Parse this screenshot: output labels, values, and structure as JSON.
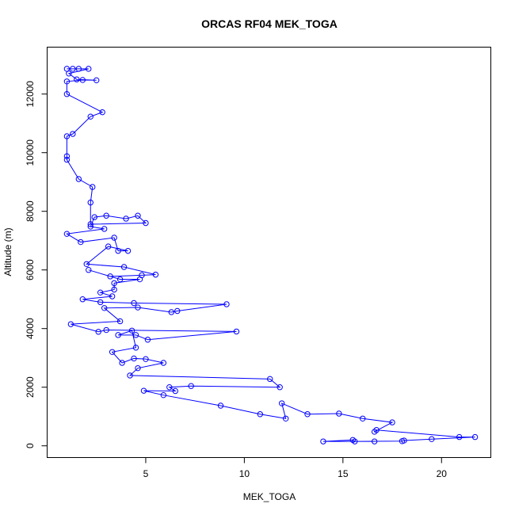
{
  "chart_data": {
    "type": "line",
    "title": "ORCAS RF04 MEK_TOGA",
    "xlabel": "MEK_TOGA",
    "ylabel": "Altitude (m)",
    "xlim": [
      0.0,
      22.5
    ],
    "ylim": [
      -400,
      13600
    ],
    "x_ticks": [
      5,
      10,
      15,
      20
    ],
    "y_ticks": [
      0,
      2000,
      4000,
      6000,
      8000,
      10000,
      12000
    ],
    "x_tick_labels": [
      "5",
      "10",
      "15",
      "20"
    ],
    "y_tick_labels": [
      "0",
      "2000",
      "4000",
      "6000",
      "8000",
      "10000",
      "12000"
    ],
    "grid": false,
    "series": [
      {
        "color": "#0000ff",
        "marker": "open-circle",
        "points": [
          [
            1.0,
            12860
          ],
          [
            1.3,
            12860
          ],
          [
            1.6,
            12860
          ],
          [
            2.1,
            12860
          ],
          [
            1.1,
            12700
          ],
          [
            1.5,
            12500
          ],
          [
            2.5,
            12470
          ],
          [
            1.8,
            12480
          ],
          [
            1.0,
            12430
          ],
          [
            1.0,
            12000
          ],
          [
            2.8,
            11380
          ],
          [
            2.2,
            11230
          ],
          [
            1.3,
            10640
          ],
          [
            1.0,
            10560
          ],
          [
            1.0,
            9880
          ],
          [
            1.0,
            9760
          ],
          [
            1.6,
            9100
          ],
          [
            2.3,
            8830
          ],
          [
            2.2,
            8300
          ],
          [
            2.2,
            7560
          ],
          [
            5.0,
            7600
          ],
          [
            4.6,
            7850
          ],
          [
            4.0,
            7750
          ],
          [
            3.0,
            7850
          ],
          [
            2.4,
            7800
          ],
          [
            2.2,
            7480
          ],
          [
            2.9,
            7400
          ],
          [
            1.0,
            7230
          ],
          [
            1.7,
            6950
          ],
          [
            3.4,
            7100
          ],
          [
            3.6,
            6650
          ],
          [
            4.1,
            6650
          ],
          [
            3.1,
            6800
          ],
          [
            2.0,
            6200
          ],
          [
            3.9,
            6100
          ],
          [
            5.5,
            5840
          ],
          [
            4.8,
            5820
          ],
          [
            3.2,
            5780
          ],
          [
            2.1,
            6000
          ],
          [
            3.7,
            5680
          ],
          [
            4.7,
            5680
          ],
          [
            3.4,
            5550
          ],
          [
            3.4,
            5330
          ],
          [
            2.7,
            5230
          ],
          [
            3.3,
            5100
          ],
          [
            1.8,
            5000
          ],
          [
            2.7,
            4900
          ],
          [
            4.4,
            4870
          ],
          [
            9.1,
            4830
          ],
          [
            6.6,
            4600
          ],
          [
            6.3,
            4560
          ],
          [
            4.6,
            4720
          ],
          [
            2.9,
            4700
          ],
          [
            3.7,
            4250
          ],
          [
            1.2,
            4150
          ],
          [
            2.6,
            3890
          ],
          [
            3.0,
            3950
          ],
          [
            9.6,
            3900
          ],
          [
            5.1,
            3620
          ],
          [
            4.5,
            3780
          ],
          [
            3.6,
            3780
          ],
          [
            4.3,
            3930
          ],
          [
            4.5,
            3350
          ],
          [
            3.3,
            3200
          ],
          [
            3.8,
            2830
          ],
          [
            4.4,
            2980
          ],
          [
            5.0,
            2960
          ],
          [
            5.9,
            2830
          ],
          [
            4.6,
            2650
          ],
          [
            4.2,
            2400
          ],
          [
            11.3,
            2280
          ],
          [
            11.8,
            2000
          ],
          [
            7.3,
            2040
          ],
          [
            6.2,
            2000
          ],
          [
            6.5,
            1870
          ],
          [
            4.9,
            1880
          ],
          [
            5.9,
            1730
          ],
          [
            8.8,
            1370
          ],
          [
            10.8,
            1080
          ],
          [
            12.1,
            930
          ],
          [
            11.9,
            1450
          ],
          [
            13.2,
            1080
          ],
          [
            14.8,
            1100
          ],
          [
            16.0,
            930
          ],
          [
            17.5,
            800
          ],
          [
            16.6,
            480
          ],
          [
            16.7,
            540
          ],
          [
            20.9,
            300
          ],
          [
            21.7,
            300
          ],
          [
            19.5,
            230
          ],
          [
            18.1,
            180
          ],
          [
            18.0,
            160
          ],
          [
            15.6,
            150
          ],
          [
            15.5,
            200
          ],
          [
            14.0,
            150
          ],
          [
            16.6,
            150
          ]
        ]
      }
    ]
  }
}
